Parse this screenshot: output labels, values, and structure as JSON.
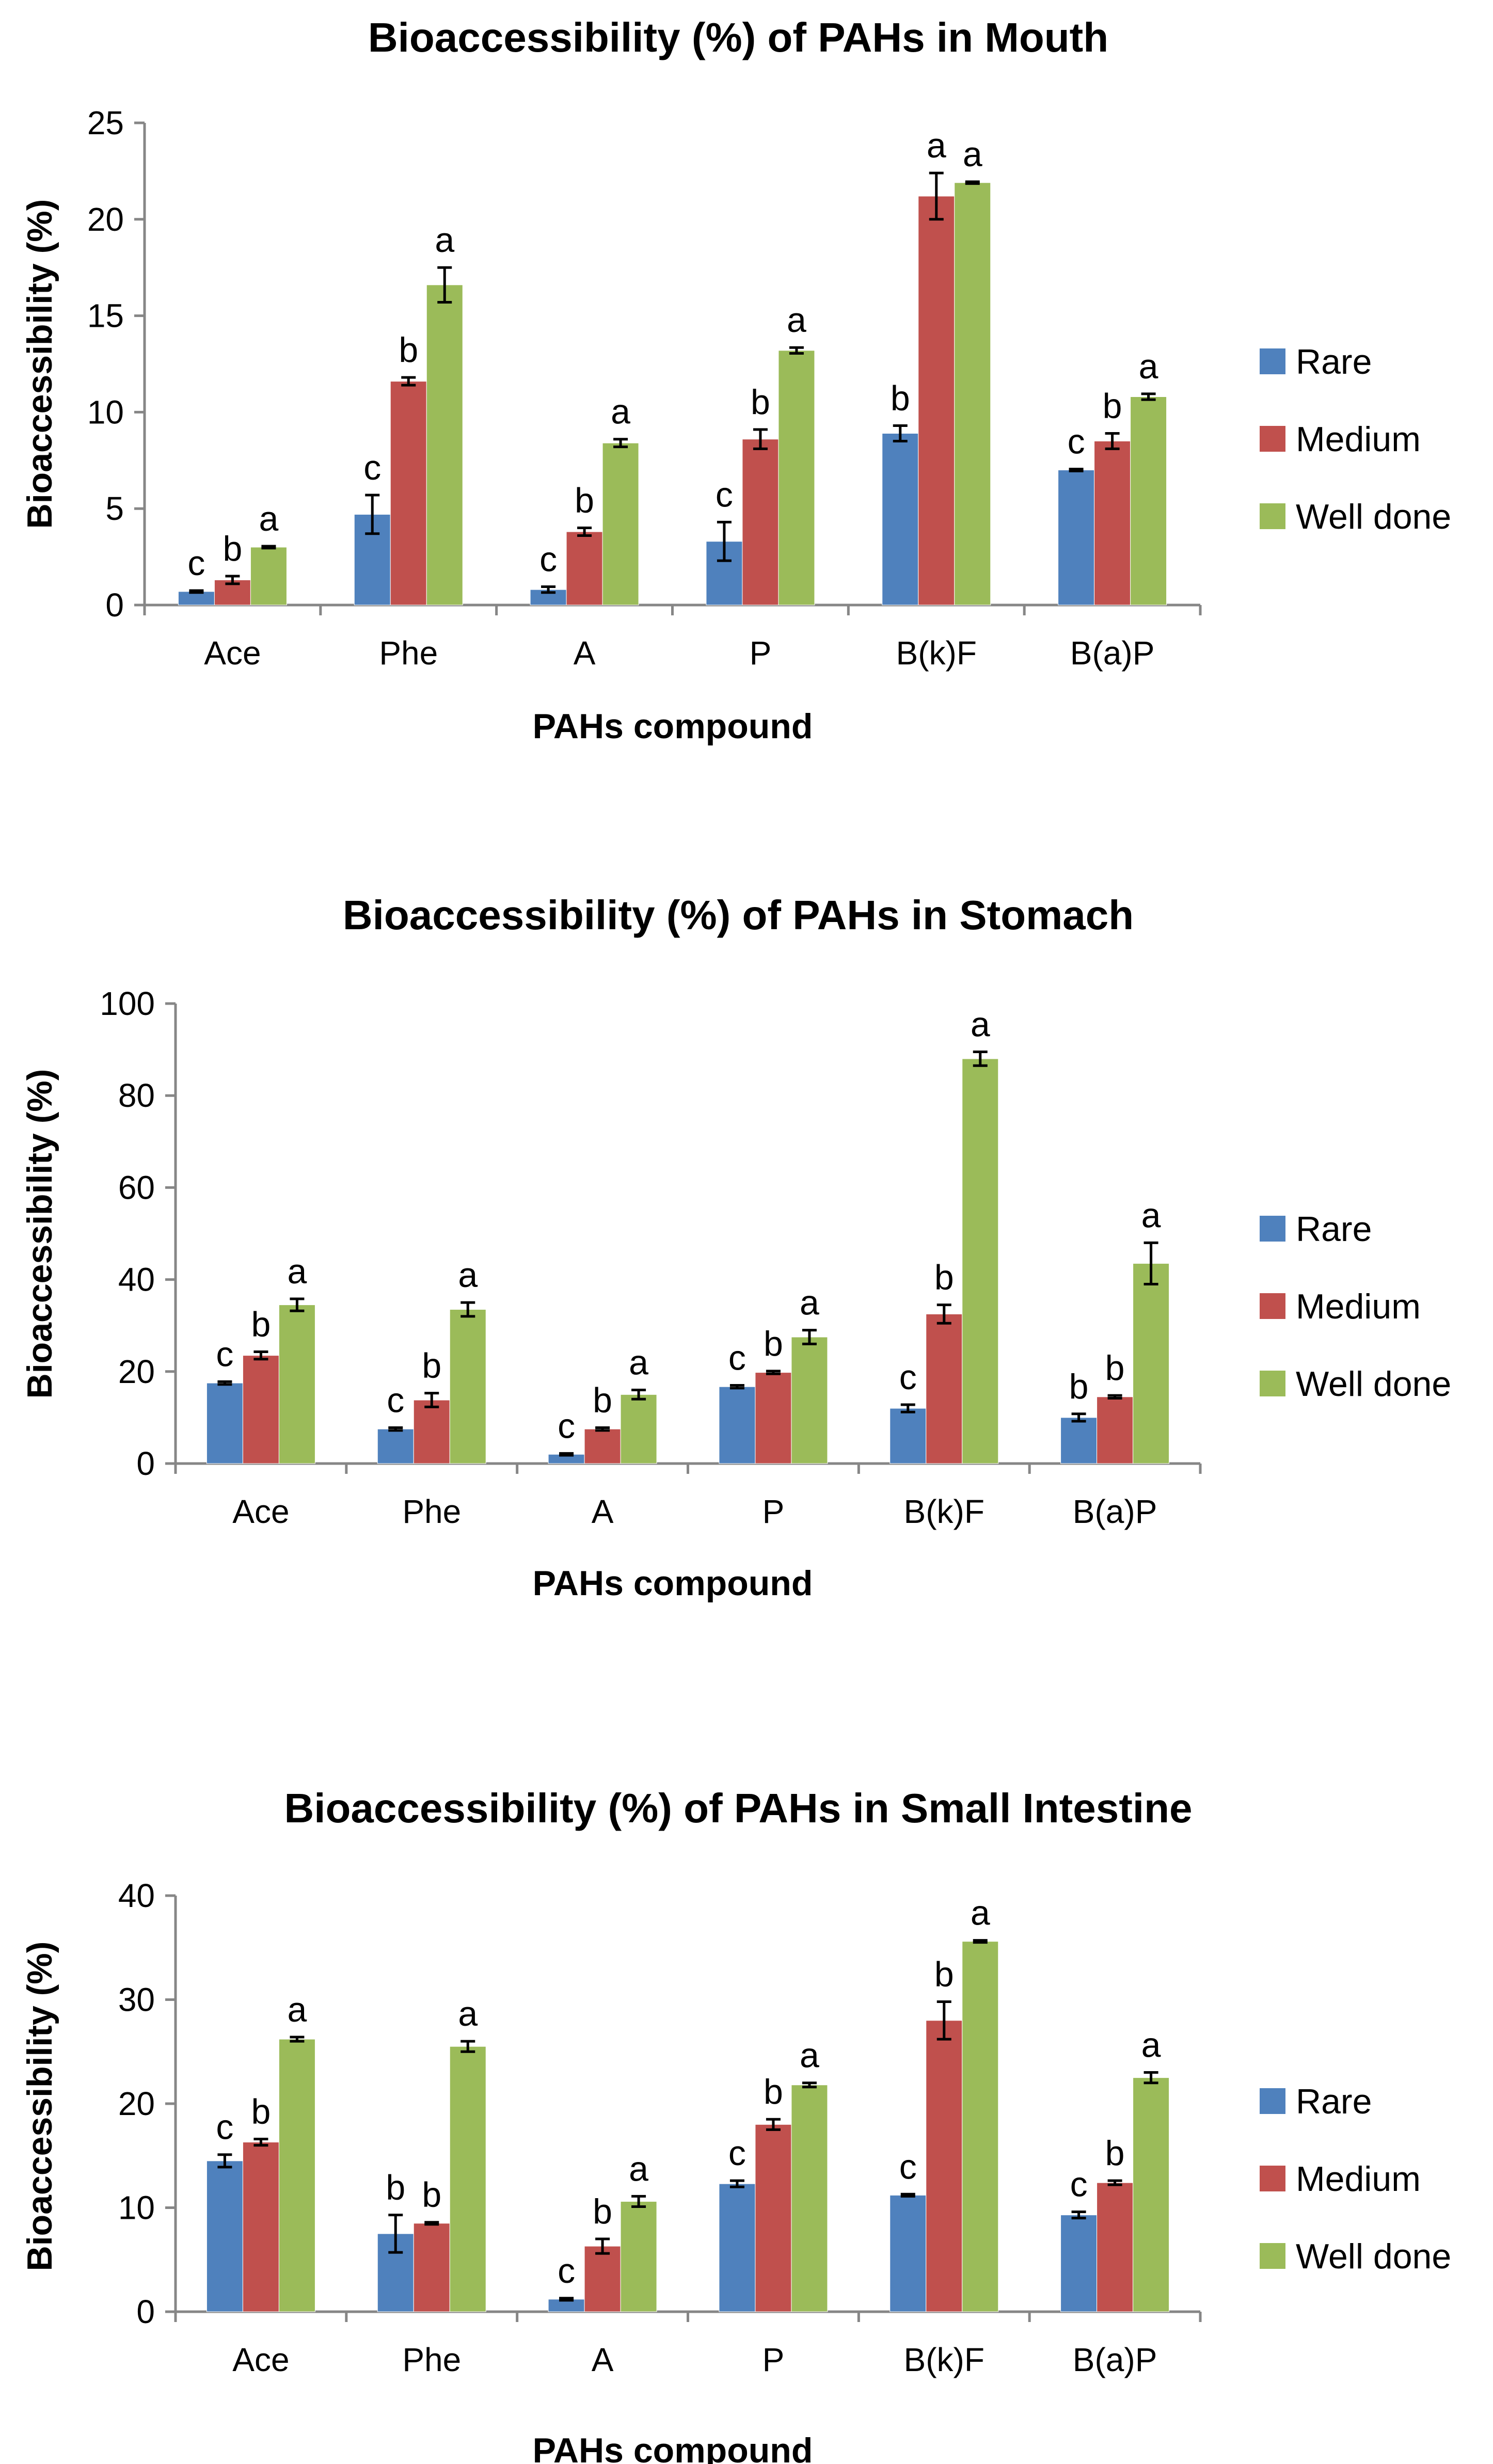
{
  "colors": {
    "Rare": "#4F81BD",
    "Medium": "#C0504D",
    "Well done": "#9BBB59"
  },
  "chart_data": [
    {
      "type": "bar",
      "title": "Bioaccessibility (%) of PAHs in Mouth",
      "xlabel": "PAHs compound",
      "ylabel": "Bioaccessibility (%)",
      "ylim": [
        0,
        25
      ],
      "yticks": [
        0,
        5,
        10,
        15,
        20,
        25
      ],
      "categories": [
        "Ace",
        "Phe",
        "A",
        "P",
        "B(k)F",
        "B(a)P"
      ],
      "legend": "right",
      "series": [
        {
          "name": "Rare",
          "values": [
            0.7,
            4.7,
            0.8,
            3.3,
            8.9,
            7.0
          ],
          "errors": [
            0.05,
            1.0,
            0.15,
            1.0,
            0.4,
            0.05
          ],
          "letters": [
            "c",
            "c",
            "c",
            "c",
            "b",
            "c"
          ]
        },
        {
          "name": "Medium",
          "values": [
            1.3,
            11.6,
            3.8,
            8.6,
            21.2,
            8.5
          ],
          "errors": [
            0.2,
            0.2,
            0.2,
            0.5,
            1.2,
            0.4
          ],
          "letters": [
            "b",
            "b",
            "b",
            "b",
            "a",
            "b"
          ]
        },
        {
          "name": "Well done",
          "values": [
            3.0,
            16.6,
            8.4,
            13.2,
            21.9,
            10.8
          ],
          "errors": [
            0.05,
            0.9,
            0.2,
            0.15,
            0.05,
            0.15
          ],
          "letters": [
            "a",
            "a",
            "a",
            "a",
            "a",
            "a"
          ]
        }
      ]
    },
    {
      "type": "bar",
      "title": "Bioaccessibility (%) of PAHs in Stomach",
      "xlabel": "PAHs compound",
      "ylabel": "Bioaccessibility (%)",
      "ylim": [
        0,
        100
      ],
      "yticks": [
        0,
        20,
        40,
        60,
        80,
        100
      ],
      "categories": [
        "Ace",
        "Phe",
        "A",
        "P",
        "B(k)F",
        "B(a)P"
      ],
      "legend": "right",
      "series": [
        {
          "name": "Rare",
          "values": [
            17.5,
            7.5,
            2.0,
            16.7,
            12.0,
            10.0
          ],
          "errors": [
            0.3,
            0.3,
            0.2,
            0.3,
            0.8,
            0.8
          ],
          "letters": [
            "c",
            "c",
            "c",
            "c",
            "c",
            "b"
          ]
        },
        {
          "name": "Medium",
          "values": [
            23.5,
            13.8,
            7.5,
            19.8,
            32.5,
            14.5
          ],
          "errors": [
            0.8,
            1.5,
            0.3,
            0.3,
            2.0,
            0.3
          ],
          "letters": [
            "b",
            "b",
            "b",
            "b",
            "b",
            "b"
          ]
        },
        {
          "name": "Well done",
          "values": [
            34.5,
            33.5,
            15.0,
            27.5,
            88.0,
            43.5
          ],
          "errors": [
            1.3,
            1.5,
            1.0,
            1.5,
            1.5,
            4.5
          ],
          "letters": [
            "a",
            "a",
            "a",
            "a",
            "a",
            "a"
          ]
        }
      ]
    },
    {
      "type": "bar",
      "title": "Bioaccessibility (%) of PAHs in Small Intestine",
      "xlabel": "PAHs compound",
      "ylabel": "Bioaccessibility (%)",
      "ylim": [
        0,
        40
      ],
      "yticks": [
        0,
        10,
        20,
        30,
        40
      ],
      "categories": [
        "Ace",
        "Phe",
        "A",
        "P",
        "B(k)F",
        "B(a)P"
      ],
      "legend": "right",
      "series": [
        {
          "name": "Rare",
          "values": [
            14.5,
            7.5,
            1.2,
            12.3,
            11.2,
            9.3
          ],
          "errors": [
            0.6,
            1.8,
            0.1,
            0.3,
            0.1,
            0.3
          ],
          "letters": [
            "c",
            "b",
            "c",
            "c",
            "c",
            "c"
          ]
        },
        {
          "name": "Medium",
          "values": [
            16.3,
            8.5,
            6.3,
            18.0,
            28.0,
            12.4
          ],
          "errors": [
            0.3,
            0.1,
            0.7,
            0.5,
            1.8,
            0.2
          ],
          "letters": [
            "b",
            "b",
            "b",
            "b",
            "b",
            "b"
          ]
        },
        {
          "name": "Well done",
          "values": [
            26.2,
            25.5,
            10.6,
            21.8,
            35.6,
            22.5
          ],
          "errors": [
            0.2,
            0.5,
            0.5,
            0.2,
            0.1,
            0.5
          ],
          "letters": [
            "a",
            "a",
            "a",
            "a",
            "a",
            "a"
          ]
        }
      ]
    }
  ]
}
